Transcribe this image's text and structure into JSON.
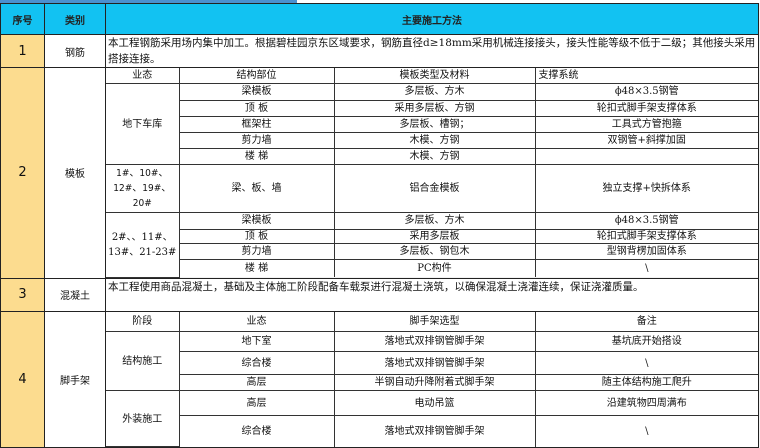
{
  "header": {
    "seq": "序号",
    "category": "类别",
    "method": "主要施工方法"
  },
  "colors": {
    "header_bg": "#12c2f2",
    "seq_bg": "#fcdc8f",
    "border": "#222222"
  },
  "rows": {
    "r1": {
      "seq": "1",
      "category": "钢筋",
      "text": "本工程钢筋采用场内集中加工。根据碧桂园京东区域要求，钢筋直径d≥18mm采用机械连接接头，接头性能等级不低于二级；其他接头采用搭接连接。"
    },
    "r2": {
      "seq": "2",
      "category": "模板",
      "headers": [
        "业态",
        "结构部位",
        "模板类型及材料",
        "支撑系统"
      ],
      "g1": {
        "type": "地下车库",
        "items": [
          [
            "梁模板",
            "多层板、方木",
            "ϕ48×3.5钢管"
          ],
          [
            "顶  板",
            "采用多层板、方钢",
            "轮扣式脚手架支撑体系"
          ],
          [
            "框架柱",
            "多层板、槽钢；",
            "工具式方管抱箍"
          ],
          [
            "剪力墙",
            "木模、方钢",
            "双钢管+斜撑加固"
          ],
          [
            "楼  梯",
            "木模、方钢",
            ""
          ]
        ]
      },
      "g2": {
        "type": "1#、10#、12#、19#、20#",
        "part": "梁、板、墙",
        "material": "铝合金模板",
        "support": "独立支撑+快拆体系"
      },
      "g3": {
        "type": "2#、、11#、13#、21-23#",
        "items": [
          [
            "梁模板",
            "多层板、方木",
            "ϕ48×3.5钢管"
          ],
          [
            "顶  板",
            "采用多层板",
            "轮扣式脚手架支撑体系"
          ],
          [
            "剪力墙",
            "多层板、钢包木",
            "型钢背楞加固体系"
          ],
          [
            "楼  梯",
            "PC构件",
            "\\"
          ]
        ]
      }
    },
    "r3": {
      "seq": "3",
      "category": "混凝土",
      "text": "本工程使用商品混凝土，基础及主体施工阶段配备车载泵进行混凝土浇筑，以确保混凝土浇灌连续，保证浇灌质量。"
    },
    "r4": {
      "seq": "4",
      "category": "脚手架",
      "headers": [
        "阶段",
        "业态",
        "脚手架选型",
        "备注"
      ],
      "g1": {
        "stage": "结构施工",
        "items": [
          [
            "地下室",
            "落地式双排钢管脚手架",
            "基坑底开始搭设"
          ],
          [
            "综合楼",
            "落地式双排钢管脚手架",
            "\\"
          ],
          [
            "高层",
            "半钢自动升降附着式脚手架",
            "随主体结构施工爬升"
          ]
        ]
      },
      "g2": {
        "stage": "外装施工",
        "items": [
          [
            "高层",
            "电动吊篮",
            "沿建筑物四周满布"
          ],
          [
            "综合楼",
            "落地式双排钢管脚手架",
            "\\"
          ]
        ]
      }
    }
  }
}
